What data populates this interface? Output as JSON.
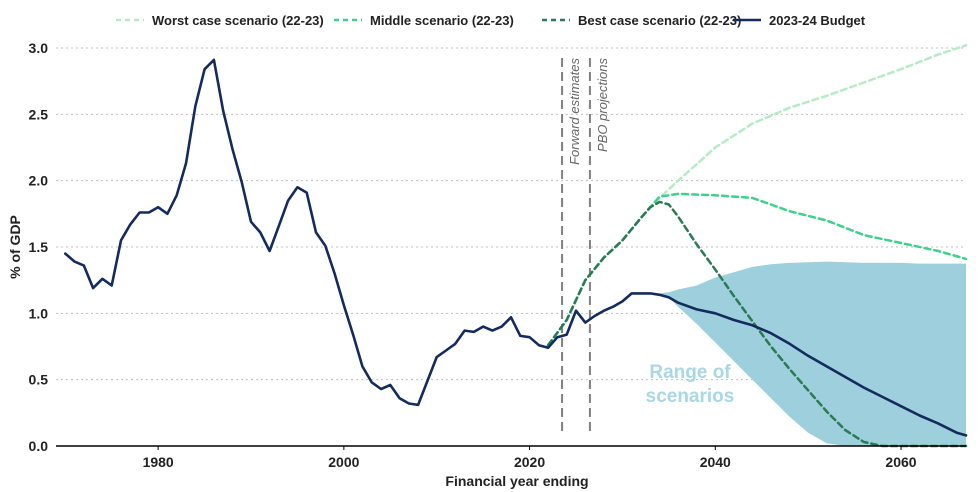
{
  "chart_data": {
    "type": "line",
    "xlabel": "Financial year ending",
    "ylabel": "% of GDP",
    "xlim": [
      1969,
      2067
    ],
    "ylim": [
      0,
      3.0
    ],
    "x_ticks": [
      1980,
      2000,
      2020,
      2040,
      2060
    ],
    "y_ticks": [
      0.0,
      0.5,
      1.0,
      1.5,
      2.0,
      2.5,
      3.0
    ],
    "grid": "horizontal dotted",
    "legend_position": "top",
    "vertical_markers": [
      {
        "x": 2023.5,
        "label": "Forward estimates"
      },
      {
        "x": 2026.5,
        "label": "PBO projections"
      }
    ],
    "range_label": [
      "Range of",
      "scenarios"
    ],
    "colors": {
      "budget": "#142b5e",
      "worst": "#b6ebc6",
      "middle": "#3fcf8f",
      "best": "#2a7a52",
      "range": "#9dcfdd",
      "axis": "#000000",
      "grid": "#bfbfbf",
      "marker": "#808080"
    },
    "range_area": {
      "name": "Range of scenarios",
      "x": [
        2034,
        2035,
        2036,
        2038,
        2040,
        2042,
        2044,
        2046,
        2048,
        2050,
        2052,
        2054,
        2056,
        2058,
        2060,
        2062,
        2064,
        2066,
        2067
      ],
      "upper": [
        1.15,
        1.16,
        1.18,
        1.21,
        1.27,
        1.31,
        1.35,
        1.37,
        1.38,
        1.385,
        1.39,
        1.385,
        1.38,
        1.38,
        1.38,
        1.375,
        1.375,
        1.375,
        1.375
      ],
      "lower": [
        1.15,
        1.12,
        1.05,
        0.92,
        0.78,
        0.64,
        0.5,
        0.36,
        0.22,
        0.1,
        0.02,
        0.0,
        0.0,
        0.0,
        0.0,
        0.0,
        0.0,
        0.0,
        0.0
      ]
    },
    "series": [
      {
        "name": "Worst case scenario (22-23)",
        "style": "dashed",
        "x": [
          2022,
          2024,
          2026,
          2028,
          2030,
          2032,
          2034,
          2036,
          2040,
          2044,
          2048,
          2052,
          2056,
          2060,
          2064,
          2067
        ],
        "values": [
          0.76,
          0.95,
          1.25,
          1.42,
          1.55,
          1.72,
          1.87,
          2.0,
          2.25,
          2.43,
          2.55,
          2.64,
          2.74,
          2.84,
          2.95,
          3.02
        ]
      },
      {
        "name": "Middle scenario (22-23)",
        "style": "dashed",
        "x": [
          2022,
          2024,
          2026,
          2028,
          2030,
          2032,
          2034,
          2036,
          2040,
          2044,
          2048,
          2052,
          2056,
          2060,
          2064,
          2067
        ],
        "values": [
          0.76,
          0.95,
          1.25,
          1.42,
          1.55,
          1.72,
          1.88,
          1.9,
          1.89,
          1.87,
          1.77,
          1.7,
          1.59,
          1.53,
          1.47,
          1.41
        ]
      },
      {
        "name": "Best case scenario (22-23)",
        "style": "dashed",
        "x": [
          2022,
          2024,
          2026,
          2028,
          2030,
          2032,
          2033,
          2034,
          2035,
          2036,
          2038,
          2040,
          2042,
          2044,
          2046,
          2048,
          2050,
          2052,
          2054,
          2056,
          2058,
          2060,
          2064,
          2067
        ],
        "values": [
          0.76,
          0.95,
          1.25,
          1.42,
          1.55,
          1.72,
          1.8,
          1.84,
          1.82,
          1.73,
          1.52,
          1.33,
          1.13,
          0.94,
          0.75,
          0.58,
          0.42,
          0.26,
          0.12,
          0.03,
          0.0,
          0.0,
          0.0,
          0.0
        ]
      },
      {
        "name": "2023-24 Budget",
        "style": "solid",
        "x": [
          1970,
          1971,
          1972,
          1973,
          1974,
          1975,
          1976,
          1977,
          1978,
          1979,
          1980,
          1981,
          1982,
          1983,
          1984,
          1985,
          1986,
          1987,
          1988,
          1989,
          1990,
          1991,
          1992,
          1993,
          1994,
          1995,
          1996,
          1997,
          1998,
          1999,
          2000,
          2001,
          2002,
          2003,
          2004,
          2005,
          2006,
          2007,
          2008,
          2009,
          2010,
          2011,
          2012,
          2013,
          2014,
          2015,
          2016,
          2017,
          2018,
          2019,
          2020,
          2021,
          2022,
          2023,
          2024,
          2025,
          2026,
          2027,
          2028,
          2029,
          2030,
          2031,
          2032,
          2033,
          2034,
          2035,
          2036,
          2038,
          2040,
          2042,
          2044,
          2046,
          2048,
          2050,
          2052,
          2054,
          2056,
          2058,
          2060,
          2062,
          2064,
          2066,
          2067
        ],
        "values": [
          1.45,
          1.39,
          1.36,
          1.19,
          1.26,
          1.21,
          1.55,
          1.67,
          1.76,
          1.76,
          1.8,
          1.75,
          1.89,
          2.13,
          2.56,
          2.84,
          2.91,
          2.53,
          2.24,
          1.99,
          1.69,
          1.61,
          1.47,
          1.66,
          1.85,
          1.95,
          1.91,
          1.61,
          1.51,
          1.3,
          1.06,
          0.84,
          0.6,
          0.48,
          0.43,
          0.46,
          0.36,
          0.32,
          0.31,
          0.49,
          0.67,
          0.72,
          0.77,
          0.87,
          0.86,
          0.9,
          0.87,
          0.9,
          0.97,
          0.83,
          0.82,
          0.76,
          0.74,
          0.82,
          0.84,
          1.02,
          0.93,
          0.98,
          1.02,
          1.05,
          1.09,
          1.15,
          1.15,
          1.15,
          1.14,
          1.12,
          1.08,
          1.03,
          1.0,
          0.95,
          0.91,
          0.85,
          0.77,
          0.68,
          0.6,
          0.52,
          0.44,
          0.37,
          0.3,
          0.23,
          0.17,
          0.1,
          0.08
        ]
      }
    ]
  }
}
